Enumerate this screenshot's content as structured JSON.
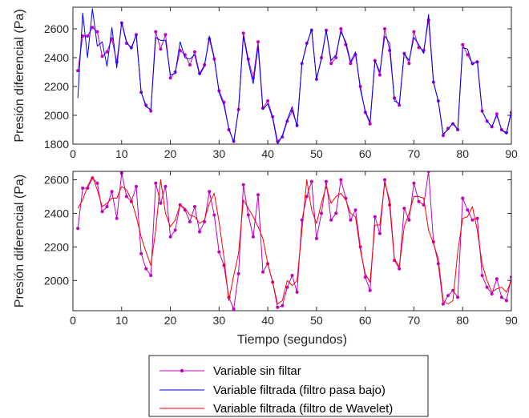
{
  "chart_data": [
    {
      "type": "line",
      "ylabel": "Presión diferencial (Pa)",
      "xlabel": "",
      "xlim": [
        0,
        90
      ],
      "ylim": [
        1800,
        2750
      ],
      "xticks": [
        0,
        10,
        20,
        30,
        40,
        50,
        60,
        70,
        80,
        90
      ],
      "yticks": [
        1800,
        2000,
        2200,
        2400,
        2600
      ],
      "grid": false,
      "x": [
        1,
        2,
        3,
        4,
        5,
        6,
        7,
        8,
        9,
        10,
        11,
        12,
        13,
        14,
        15,
        16,
        17,
        18,
        19,
        20,
        21,
        22,
        23,
        24,
        25,
        26,
        27,
        28,
        29,
        30,
        31,
        32,
        33,
        34,
        35,
        36,
        37,
        38,
        39,
        40,
        41,
        42,
        43,
        44,
        45,
        46,
        47,
        48,
        49,
        50,
        51,
        52,
        53,
        54,
        55,
        56,
        57,
        58,
        59,
        60,
        61,
        62,
        63,
        64,
        65,
        66,
        67,
        68,
        69,
        70,
        71,
        72,
        73,
        74,
        75,
        76,
        77,
        78,
        79,
        80,
        81,
        82,
        83,
        84,
        85,
        86,
        87,
        88,
        89,
        90
      ],
      "series": [
        {
          "name": "Variable sin filtar",
          "color": "#c000c0",
          "marker": "dot",
          "values": [
            2310,
            2550,
            2550,
            2610,
            2580,
            2410,
            2440,
            2530,
            2370,
            2640,
            2500,
            2470,
            2560,
            2160,
            2070,
            2030,
            2580,
            2460,
            2560,
            2260,
            2300,
            2450,
            2420,
            2350,
            2440,
            2290,
            2350,
            2530,
            2390,
            2170,
            2090,
            1900,
            1820,
            2040,
            2570,
            2390,
            2260,
            2510,
            2050,
            2100,
            1990,
            1820,
            1850,
            1960,
            2030,
            1930,
            2360,
            2500,
            2590,
            2250,
            2400,
            2590,
            2360,
            2400,
            2600,
            2490,
            2360,
            2420,
            2200,
            2020,
            1940,
            2380,
            2280,
            2600,
            2450,
            2120,
            2070,
            2430,
            2360,
            2580,
            2470,
            2450,
            2660,
            2230,
            2100,
            1860,
            1910,
            1940,
            1900,
            2490,
            2420,
            2360,
            2370,
            2030,
            1960,
            1920,
            2010,
            1900,
            1880,
            2020
          ]
        },
        {
          "name": "Variable filtrada (filtro pasa bajo)",
          "color": "#0000ff",
          "values": [
            2120,
            2710,
            2400,
            2740,
            2480,
            2510,
            2340,
            2610,
            2330,
            2650,
            2510,
            2460,
            2560,
            2160,
            2060,
            2040,
            2540,
            2520,
            2520,
            2280,
            2290,
            2510,
            2400,
            2390,
            2420,
            2280,
            2340,
            2550,
            2400,
            2160,
            2070,
            1910,
            1810,
            2040,
            2550,
            2370,
            2220,
            2480,
            2040,
            2080,
            1980,
            1800,
            1860,
            1970,
            2060,
            1920,
            2360,
            2490,
            2600,
            2250,
            2390,
            2590,
            2380,
            2420,
            2580,
            2510,
            2370,
            2440,
            2180,
            2030,
            1950,
            2380,
            2300,
            2550,
            2500,
            2100,
            2080,
            2430,
            2380,
            2540,
            2490,
            2430,
            2700,
            2230,
            2100,
            1870,
            1900,
            1950,
            1900,
            2470,
            2460,
            2350,
            2380,
            2030,
            1960,
            1920,
            2000,
            1900,
            1870,
            2030
          ]
        }
      ]
    },
    {
      "type": "line",
      "ylabel": "Presión diferencial (Pa)",
      "xlabel": "Tiempo (segundos)",
      "xlim": [
        0,
        90
      ],
      "ylim": [
        1820,
        2650
      ],
      "xticks": [
        0,
        10,
        20,
        30,
        40,
        50,
        60,
        70,
        80,
        90
      ],
      "yticks": [
        2000,
        2200,
        2400,
        2600
      ],
      "grid": false,
      "x": [
        1,
        2,
        3,
        4,
        5,
        6,
        7,
        8,
        9,
        10,
        11,
        12,
        13,
        14,
        15,
        16,
        17,
        18,
        19,
        20,
        21,
        22,
        23,
        24,
        25,
        26,
        27,
        28,
        29,
        30,
        31,
        32,
        33,
        34,
        35,
        36,
        37,
        38,
        39,
        40,
        41,
        42,
        43,
        44,
        45,
        46,
        47,
        48,
        49,
        50,
        51,
        52,
        53,
        54,
        55,
        56,
        57,
        58,
        59,
        60,
        61,
        62,
        63,
        64,
        65,
        66,
        67,
        68,
        69,
        70,
        71,
        72,
        73,
        74,
        75,
        76,
        77,
        78,
        79,
        80,
        81,
        82,
        83,
        84,
        85,
        86,
        87,
        88,
        89,
        90
      ],
      "series": [
        {
          "name": "Variable sin filtar",
          "color": "#c000c0",
          "marker": "dot",
          "values": [
            2310,
            2550,
            2550,
            2610,
            2580,
            2410,
            2440,
            2530,
            2370,
            2640,
            2500,
            2470,
            2560,
            2160,
            2070,
            2030,
            2580,
            2460,
            2560,
            2260,
            2300,
            2450,
            2420,
            2350,
            2440,
            2290,
            2350,
            2530,
            2390,
            2170,
            2090,
            1900,
            1830,
            2040,
            2570,
            2390,
            2260,
            2510,
            2050,
            2100,
            1990,
            1840,
            1850,
            1960,
            2030,
            1930,
            2360,
            2500,
            2590,
            2250,
            2400,
            2590,
            2360,
            2400,
            2600,
            2490,
            2360,
            2420,
            2200,
            2020,
            1940,
            2380,
            2280,
            2600,
            2450,
            2120,
            2070,
            2430,
            2360,
            2580,
            2470,
            2450,
            2650,
            2230,
            2100,
            1860,
            1910,
            1940,
            1900,
            2490,
            2420,
            2360,
            2370,
            2030,
            1960,
            1920,
            2010,
            1900,
            1880,
            2020
          ]
        },
        {
          "name": "Variable filtrada (filtro de Wavelet)",
          "color": "#ff0000",
          "values": [
            2430,
            2480,
            2560,
            2620,
            2540,
            2440,
            2460,
            2490,
            2490,
            2560,
            2540,
            2480,
            2380,
            2260,
            2170,
            2090,
            2300,
            2600,
            2400,
            2320,
            2360,
            2450,
            2430,
            2390,
            2380,
            2340,
            2360,
            2460,
            2520,
            2350,
            2140,
            1880,
            2030,
            2160,
            2480,
            2430,
            2380,
            2320,
            2250,
            2100,
            1990,
            1860,
            1880,
            2000,
            1970,
            2000,
            2300,
            2600,
            2420,
            2340,
            2460,
            2560,
            2460,
            2500,
            2520,
            2480,
            2400,
            2380,
            2180,
            2040,
            1990,
            2330,
            2330,
            2580,
            2480,
            2130,
            2080,
            2320,
            2400,
            2500,
            2500,
            2490,
            2300,
            2220,
            2130,
            1880,
            1860,
            1880,
            2170,
            2370,
            2380,
            2440,
            2300,
            2100,
            2000,
            1930,
            1950,
            1960,
            1930,
            2000
          ]
        }
      ]
    }
  ],
  "legend": {
    "items": [
      {
        "label": "Variable sin filtar",
        "color": "#c000c0",
        "marker": true
      },
      {
        "label": "Variable filtrada (filtro pasa bajo)",
        "color": "#0000ff",
        "marker": false
      },
      {
        "label": "Variable filtrada (filtro de Wavelet)",
        "color": "#ff0000",
        "marker": false
      }
    ]
  }
}
